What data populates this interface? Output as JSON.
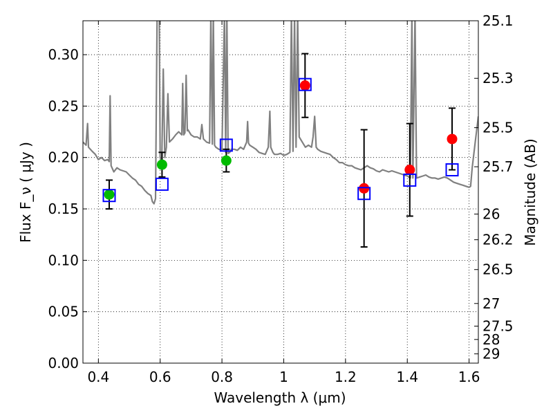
{
  "chart_data": {
    "type": "scatter",
    "xlabel": "Wavelength  λ (μm)",
    "ylabel": "Flux  F_ν  ( μJy )",
    "ylabel_right": "Magnitude (AB)",
    "xlim": [
      0.35,
      1.63
    ],
    "ylim": [
      0.0,
      0.333
    ],
    "grid": true,
    "x_ticks": [
      0.4,
      0.6,
      0.8,
      1.0,
      1.2,
      1.4,
      1.6
    ],
    "x_tick_labels": [
      "0.4",
      "0.6",
      "0.8",
      "1",
      "1.2",
      "1.4",
      "1.6"
    ],
    "y_ticks": [
      0.0,
      0.05,
      0.1,
      0.15,
      0.2,
      0.25,
      0.3
    ],
    "y_tick_labels": [
      "0.00",
      "0.05",
      "0.10",
      "0.15",
      "0.20",
      "0.25",
      "0.30"
    ],
    "right_ticks": [
      {
        "label": "25.1",
        "flux": 0.333
      },
      {
        "label": "25.3",
        "flux": 0.277
      },
      {
        "label": "25.5",
        "flux": 0.229
      },
      {
        "label": "25.7",
        "flux": 0.191
      },
      {
        "label": "26",
        "flux": 0.145
      },
      {
        "label": "26.2",
        "flux": 0.12
      },
      {
        "label": "26.5",
        "flux": 0.091
      },
      {
        "label": "27",
        "flux": 0.058
      },
      {
        "label": "27.5",
        "flux": 0.036
      },
      {
        "label": "28",
        "flux": 0.023
      },
      {
        "label": "29",
        "flux": 0.009
      }
    ],
    "series": [
      {
        "marker": "circle",
        "color": "#00bb00",
        "points": [
          {
            "x": 0.435,
            "y": 0.164,
            "err": 0.014
          },
          {
            "x": 0.606,
            "y": 0.193,
            "err": 0.012
          },
          {
            "x": 0.814,
            "y": 0.197,
            "err": 0.011
          }
        ]
      },
      {
        "marker": "circle",
        "color": "#ff0000",
        "points": [
          {
            "x": 1.069,
            "y": 0.27,
            "err": 0.031
          },
          {
            "x": 1.26,
            "y": 0.17,
            "err": 0.057
          },
          {
            "x": 1.408,
            "y": 0.188,
            "err": 0.045
          },
          {
            "x": 1.545,
            "y": 0.218,
            "err": 0.03
          }
        ]
      },
      {
        "marker": "open-square",
        "color": "#0000ff",
        "points": [
          {
            "x": 0.435,
            "y": 0.163
          },
          {
            "x": 0.606,
            "y": 0.174
          },
          {
            "x": 0.814,
            "y": 0.212
          },
          {
            "x": 1.069,
            "y": 0.271
          },
          {
            "x": 1.26,
            "y": 0.165
          },
          {
            "x": 1.408,
            "y": 0.178
          },
          {
            "x": 1.545,
            "y": 0.188
          }
        ]
      },
      {
        "type": "line",
        "color": "#808080",
        "points": [
          [
            0.35,
            0.215
          ],
          [
            0.36,
            0.212
          ],
          [
            0.365,
            0.233
          ],
          [
            0.368,
            0.21
          ],
          [
            0.38,
            0.206
          ],
          [
            0.39,
            0.203
          ],
          [
            0.4,
            0.198
          ],
          [
            0.41,
            0.2
          ],
          [
            0.42,
            0.197
          ],
          [
            0.43,
            0.198
          ],
          [
            0.435,
            0.196
          ],
          [
            0.438,
            0.26
          ],
          [
            0.441,
            0.192
          ],
          [
            0.45,
            0.186
          ],
          [
            0.46,
            0.19
          ],
          [
            0.47,
            0.188
          ],
          [
            0.48,
            0.187
          ],
          [
            0.49,
            0.186
          ],
          [
            0.5,
            0.183
          ],
          [
            0.51,
            0.18
          ],
          [
            0.52,
            0.178
          ],
          [
            0.53,
            0.174
          ],
          [
            0.54,
            0.172
          ],
          [
            0.55,
            0.168
          ],
          [
            0.56,
            0.165
          ],
          [
            0.57,
            0.163
          ],
          [
            0.575,
            0.157
          ],
          [
            0.58,
            0.155
          ],
          [
            0.585,
            0.16
          ],
          [
            0.59,
            0.34
          ],
          [
            0.597,
            0.34
          ],
          [
            0.6,
            0.2
          ],
          [
            0.605,
            0.195
          ],
          [
            0.61,
            0.286
          ],
          [
            0.615,
            0.2
          ],
          [
            0.62,
            0.21
          ],
          [
            0.625,
            0.262
          ],
          [
            0.63,
            0.215
          ],
          [
            0.64,
            0.218
          ],
          [
            0.65,
            0.222
          ],
          [
            0.66,
            0.225
          ],
          [
            0.67,
            0.222
          ],
          [
            0.673,
            0.272
          ],
          [
            0.676,
            0.222
          ],
          [
            0.68,
            0.224
          ],
          [
            0.684,
            0.28
          ],
          [
            0.688,
            0.226
          ],
          [
            0.69,
            0.227
          ],
          [
            0.7,
            0.222
          ],
          [
            0.71,
            0.22
          ],
          [
            0.72,
            0.22
          ],
          [
            0.73,
            0.218
          ],
          [
            0.735,
            0.232
          ],
          [
            0.74,
            0.218
          ],
          [
            0.75,
            0.215
          ],
          [
            0.76,
            0.214
          ],
          [
            0.764,
            0.34
          ],
          [
            0.769,
            0.213
          ],
          [
            0.772,
            0.34
          ],
          [
            0.776,
            0.212
          ],
          [
            0.78,
            0.21
          ],
          [
            0.79,
            0.208
          ],
          [
            0.8,
            0.207
          ],
          [
            0.808,
            0.34
          ],
          [
            0.812,
            0.205
          ],
          [
            0.816,
            0.34
          ],
          [
            0.82,
            0.204
          ],
          [
            0.825,
            0.205
          ],
          [
            0.83,
            0.208
          ],
          [
            0.84,
            0.208
          ],
          [
            0.85,
            0.207
          ],
          [
            0.86,
            0.21
          ],
          [
            0.87,
            0.208
          ],
          [
            0.88,
            0.215
          ],
          [
            0.883,
            0.235
          ],
          [
            0.886,
            0.214
          ],
          [
            0.89,
            0.212
          ],
          [
            0.9,
            0.21
          ],
          [
            0.91,
            0.208
          ],
          [
            0.92,
            0.205
          ],
          [
            0.93,
            0.204
          ],
          [
            0.94,
            0.203
          ],
          [
            0.95,
            0.21
          ],
          [
            0.955,
            0.245
          ],
          [
            0.958,
            0.21
          ],
          [
            0.965,
            0.205
          ],
          [
            0.97,
            0.203
          ],
          [
            0.98,
            0.203
          ],
          [
            0.99,
            0.204
          ],
          [
            1.0,
            0.202
          ],
          [
            1.01,
            0.203
          ],
          [
            1.02,
            0.205
          ],
          [
            1.025,
            0.34
          ],
          [
            1.03,
            0.206
          ],
          [
            1.035,
            0.34
          ],
          [
            1.04,
            0.21
          ],
          [
            1.045,
            0.34
          ],
          [
            1.05,
            0.22
          ],
          [
            1.06,
            0.215
          ],
          [
            1.07,
            0.21
          ],
          [
            1.08,
            0.212
          ],
          [
            1.09,
            0.21
          ],
          [
            1.095,
            0.22
          ],
          [
            1.1,
            0.24
          ],
          [
            1.105,
            0.21
          ],
          [
            1.11,
            0.208
          ],
          [
            1.12,
            0.206
          ],
          [
            1.13,
            0.205
          ],
          [
            1.14,
            0.204
          ],
          [
            1.15,
            0.203
          ],
          [
            1.16,
            0.2
          ],
          [
            1.17,
            0.198
          ],
          [
            1.18,
            0.195
          ],
          [
            1.19,
            0.195
          ],
          [
            1.2,
            0.193
          ],
          [
            1.21,
            0.192
          ],
          [
            1.22,
            0.192
          ],
          [
            1.23,
            0.19
          ],
          [
            1.24,
            0.189
          ],
          [
            1.25,
            0.188
          ],
          [
            1.26,
            0.19
          ],
          [
            1.27,
            0.192
          ],
          [
            1.28,
            0.19
          ],
          [
            1.29,
            0.189
          ],
          [
            1.3,
            0.187
          ],
          [
            1.31,
            0.186
          ],
          [
            1.32,
            0.188
          ],
          [
            1.33,
            0.187
          ],
          [
            1.34,
            0.186
          ],
          [
            1.35,
            0.187
          ],
          [
            1.36,
            0.186
          ],
          [
            1.37,
            0.185
          ],
          [
            1.38,
            0.184
          ],
          [
            1.39,
            0.183
          ],
          [
            1.4,
            0.182
          ],
          [
            1.41,
            0.18
          ],
          [
            1.415,
            0.34
          ],
          [
            1.418,
            0.18
          ],
          [
            1.425,
            0.34
          ],
          [
            1.43,
            0.18
          ],
          [
            1.44,
            0.181
          ],
          [
            1.45,
            0.182
          ],
          [
            1.46,
            0.183
          ],
          [
            1.47,
            0.181
          ],
          [
            1.48,
            0.18
          ],
          [
            1.49,
            0.18
          ],
          [
            1.5,
            0.179
          ],
          [
            1.51,
            0.18
          ],
          [
            1.52,
            0.181
          ],
          [
            1.53,
            0.18
          ],
          [
            1.54,
            0.178
          ],
          [
            1.55,
            0.176
          ],
          [
            1.56,
            0.175
          ],
          [
            1.57,
            0.174
          ],
          [
            1.58,
            0.173
          ],
          [
            1.59,
            0.172
          ],
          [
            1.6,
            0.171
          ],
          [
            1.605,
            0.172
          ],
          [
            1.61,
            0.19
          ],
          [
            1.62,
            0.215
          ],
          [
            1.63,
            0.24
          ]
        ]
      }
    ]
  }
}
